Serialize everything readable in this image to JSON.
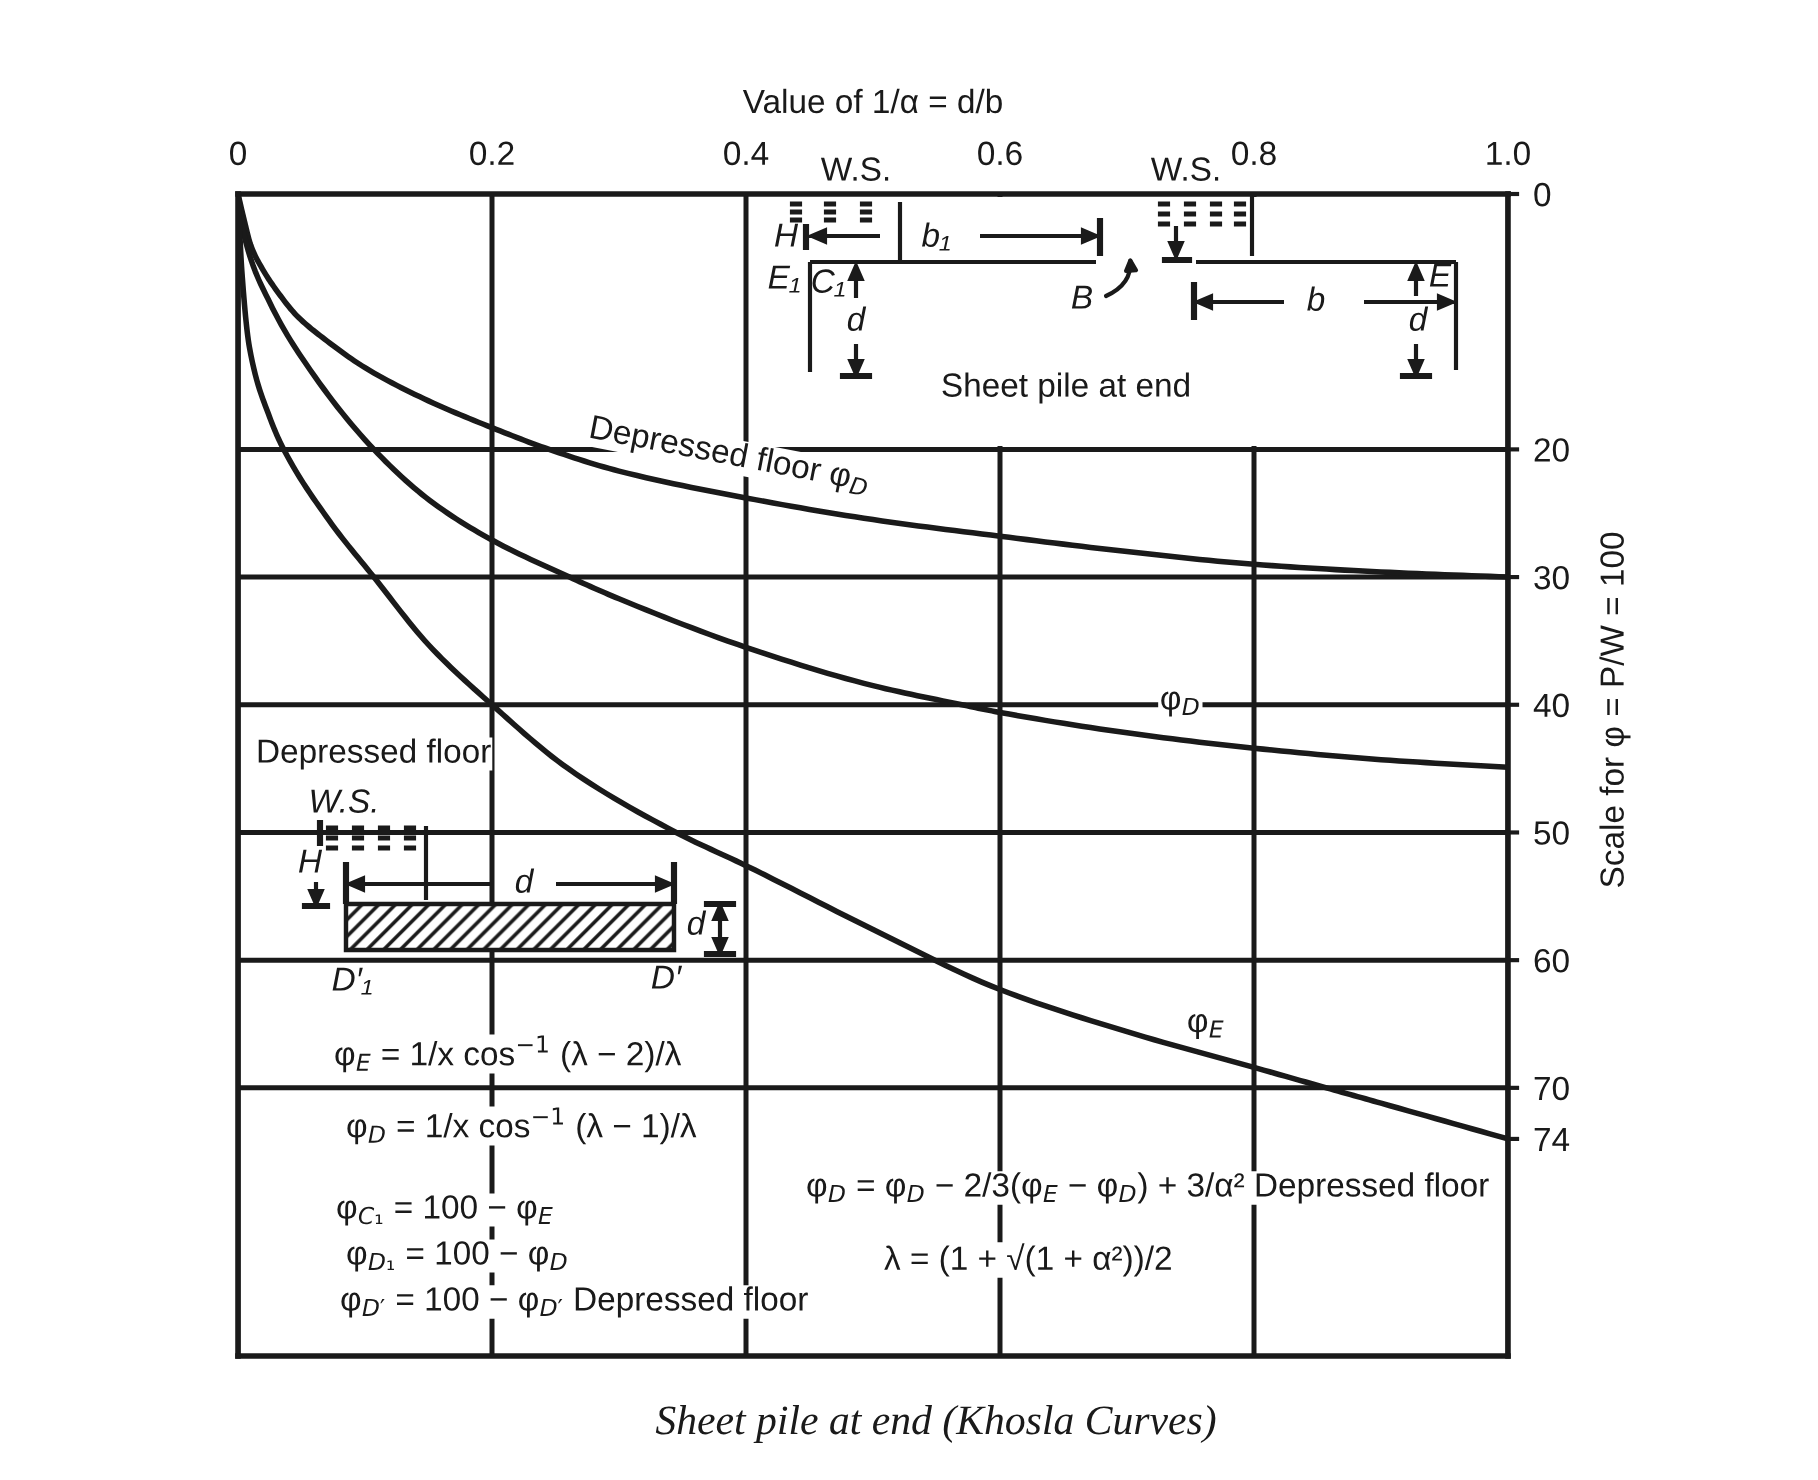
{
  "chart_data": {
    "type": "line",
    "title": "Sheet pile at end (Khosla Curves)",
    "xlabel": "Value of 1/α = d/b",
    "ylabel": "Scale for φ = P/W = 100",
    "xlim": [
      0,
      1
    ],
    "ylim": [
      91,
      0
    ],
    "xticks": [
      0,
      0.2,
      0.4,
      0.6,
      0.8,
      {
        "value": 1,
        "label": "1.0"
      }
    ],
    "yticks": [
      0,
      20,
      30,
      40,
      50,
      60,
      70,
      74
    ],
    "grid": "x",
    "ref_lines": [
      {
        "axis": "y",
        "value": 20,
        "color": "#1a1a1a"
      },
      {
        "axis": "y",
        "value": 30,
        "color": "#1a1a1a"
      },
      {
        "axis": "y",
        "value": 40,
        "color": "#1a1a1a"
      },
      {
        "axis": "y",
        "value": 50,
        "color": "#1a1a1a"
      },
      {
        "axis": "y",
        "value": 60,
        "color": "#1a1a1a"
      },
      {
        "axis": "y",
        "value": 70,
        "color": "#1a1a1a"
      }
    ],
    "series": [
      {
        "name": "Depressed floor φ$_{D}$",
        "color": "#1a1a1a",
        "x": [
          0,
          0.005,
          0.01,
          0.02,
          0.03,
          0.046,
          0.07,
          0.1,
          0.15,
          0.2,
          0.245,
          0.3,
          0.4,
          0.5,
          0.6,
          0.7,
          0.8,
          0.9,
          1.0
        ],
        "values": [
          0,
          2.1,
          4.0,
          6.0,
          7.5,
          9.5,
          11.5,
          13.6,
          16.2,
          18.3,
          20,
          21.7,
          23.8,
          25.5,
          26.8,
          28.0,
          29.0,
          29.6,
          30
        ]
      },
      {
        "name": "φ$_{D}$",
        "color": "#1a1a1a",
        "x": [
          0,
          0.005,
          0.025,
          0.057,
          0.107,
          0.151,
          0.2,
          0.261,
          0.3,
          0.4,
          0.5,
          0.57,
          0.6,
          0.7,
          0.8,
          0.9,
          1.0
        ],
        "values": [
          0,
          3.3,
          8.5,
          13.8,
          20,
          24,
          27.1,
          30,
          31.7,
          35.5,
          38.5,
          40,
          40.6,
          42.2,
          43.4,
          44.3,
          44.9
        ]
      },
      {
        "name": "φ$_{E}$",
        "color": "#1a1a1a",
        "x": [
          0,
          0.003,
          0.009,
          0.025,
          0.036,
          0.072,
          0.107,
          0.15,
          0.2,
          0.26,
          0.345,
          0.4,
          0.5,
          0.6,
          0.7,
          0.8,
          0.857,
          0.9,
          1.0
        ],
        "values": [
          0,
          6,
          12,
          17.5,
          20,
          25.6,
          30,
          35.3,
          40,
          45,
          50,
          52.6,
          57.6,
          62.3,
          65.6,
          68.4,
          70,
          71.2,
          74
        ]
      }
    ],
    "annotations": [
      "W.S.",
      "H",
      "b₁",
      "E₁",
      "C₁",
      "d",
      "B",
      "W.S.",
      "b",
      "E",
      "d",
      "Sheet pile at end",
      "Depressed floor",
      "W.S.",
      "H",
      "d",
      "d",
      "D′₁",
      "D′",
      "φ$_{E}$ = 1/x cos$^{−1}$ (λ − 2)/λ",
      "φ$_{D}$ = 1/x cos$^{−1}$ (λ − 1)/λ",
      "φ$_{C₁}$ = 100 − φ$_{E}$",
      "φ$_{D₁}$ = 100 − φ$_{D}$",
      "φ$_{D′}$ = 100 − φ$_{D′}$ Depressed floor",
      "φ$_{D}$ = φ$_{D}$ − 2/3(φ$_{E}$ − φ$_{D}$) + 3/α² Depressed floor",
      "λ = (1 + √(1 + α²))/2"
    ]
  }
}
